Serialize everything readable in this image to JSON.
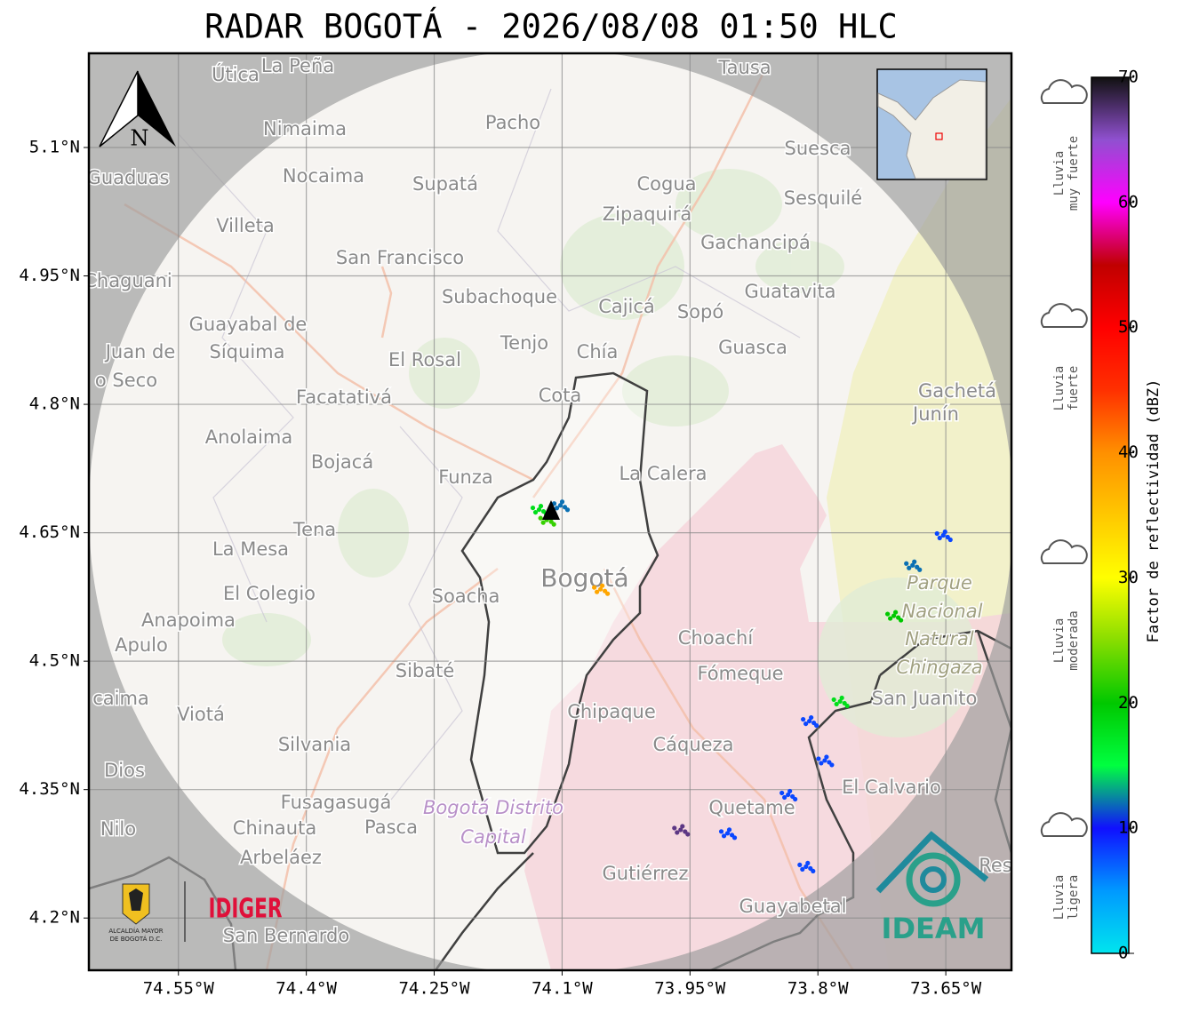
{
  "map": {
    "title": "RADAR BOGOTÁ - 2026/08/08 01:50 HLC",
    "xlim": [
      -74.655,
      -73.573
    ],
    "ylim": [
      4.139,
      5.21
    ],
    "xticks": [
      {
        "value": -74.55,
        "label": "74.55°W"
      },
      {
        "value": -74.4,
        "label": "74.4°W"
      },
      {
        "value": -74.25,
        "label": "74.25°W"
      },
      {
        "value": -74.1,
        "label": "74.1°W"
      },
      {
        "value": -73.95,
        "label": "73.95°W"
      },
      {
        "value": -73.8,
        "label": "73.8°W"
      },
      {
        "value": -73.65,
        "label": "73.65°W"
      }
    ],
    "yticks": [
      {
        "value": 4.2,
        "label": "4.2°N"
      },
      {
        "value": 4.35,
        "label": "4.35°N"
      },
      {
        "value": 4.5,
        "label": "4.5°N"
      },
      {
        "value": 4.65,
        "label": "4.65°N"
      },
      {
        "value": 4.8,
        "label": "4.8°N"
      },
      {
        "value": 4.95,
        "label": "4.95°N"
      },
      {
        "value": 5.1,
        "label": "5.1°N"
      }
    ],
    "grid": true,
    "north": "N",
    "places": [
      "Útica",
      "La Peña",
      "Tausa",
      "Pacho",
      "Nimaima",
      "Guaduas",
      "Nocaima",
      "Supatá",
      "Cogua",
      "Suesca",
      "Sesquilé",
      "Zipaquirá",
      "Villeta",
      "Gachancipá",
      "San Francisco",
      "Chaguani",
      "Guatavita",
      "Subachoque",
      "Cajicá",
      "Sopó",
      "Guayabal de",
      "Síquima",
      "Juan de",
      "Tenjo",
      "Chía",
      "Guasca",
      "El Rosal",
      "o Seco",
      "Facatativá",
      "Cota",
      "Gachetá",
      "Junín",
      "Anolaima",
      "Bojacá",
      "Funza",
      "La Calera",
      "Tena",
      "La Mesa",
      "El Colegio",
      "Soacha",
      "Bogotá",
      "Anapoima",
      "Apulo",
      "Choachí",
      "Sibaté",
      "Fómeque",
      "San Juanito",
      "caima",
      "Viotá",
      "Chipaque",
      "Cáqueza",
      "Silvania",
      "Dios",
      "El Calvario",
      "Fusagasugá",
      "Quetame",
      "Nilo",
      "Chinauta",
      "Pasca",
      "Arbeláez",
      "Gutiérrez",
      "Res",
      "Guayabetal",
      "San Bernardo",
      "Parque",
      "Nacional",
      "Natural",
      "Chingaza",
      "Bogotá Distrito",
      "Capital"
    ],
    "echoes": [
      {
        "lon": -74.127,
        "lat": 4.677,
        "dbz": 18
      },
      {
        "lon": -74.102,
        "lat": 4.682,
        "dbz": 12
      },
      {
        "lon": -74.118,
        "lat": 4.665,
        "dbz": 22
      },
      {
        "lon": -74.055,
        "lat": 4.584,
        "dbz": 38
      },
      {
        "lon": -73.689,
        "lat": 4.612,
        "dbz": 12
      },
      {
        "lon": -73.711,
        "lat": 4.553,
        "dbz": 20
      },
      {
        "lon": -73.774,
        "lat": 4.453,
        "dbz": 18
      },
      {
        "lon": -73.81,
        "lat": 4.43,
        "dbz": 8
      },
      {
        "lon": -73.653,
        "lat": 4.647,
        "dbz": 8
      },
      {
        "lon": -73.961,
        "lat": 4.303,
        "dbz": 67
      },
      {
        "lon": -73.906,
        "lat": 4.299,
        "dbz": 8
      },
      {
        "lon": -73.835,
        "lat": 4.344,
        "dbz": 8
      },
      {
        "lon": -73.814,
        "lat": 4.26,
        "dbz": 8
      },
      {
        "lon": -73.792,
        "lat": 4.384,
        "dbz": 8
      }
    ],
    "colorbar": {
      "lim": [
        0,
        70
      ],
      "ticks": [
        0,
        10,
        20,
        30,
        40,
        50,
        60,
        70
      ],
      "label": "Factor de reflectividad (dBZ)",
      "colors": [
        "#00e5ee",
        "#0099ff",
        "#1010ff",
        "#00ff40",
        "#00c800",
        "#88dd00",
        "#ffff00",
        "#ffc800",
        "#ff9000",
        "#ff3000",
        "#ff0000",
        "#c00000",
        "#ff00ff",
        "#9050d0",
        "#111111"
      ]
    },
    "rain_legend": [
      [
        "Lluvia",
        "muy fuerte"
      ],
      [
        "Lluvia",
        "fuerte"
      ],
      [
        "Lluvia",
        "moderada"
      ],
      [
        "Lluvia",
        "ligera"
      ]
    ],
    "logos": {
      "alcaldia": [
        "ALCALDÍA MAYOR",
        "DE BOGOTÁ D.C."
      ],
      "idiger": "IDIGER",
      "ideam": "IDEAM"
    }
  }
}
